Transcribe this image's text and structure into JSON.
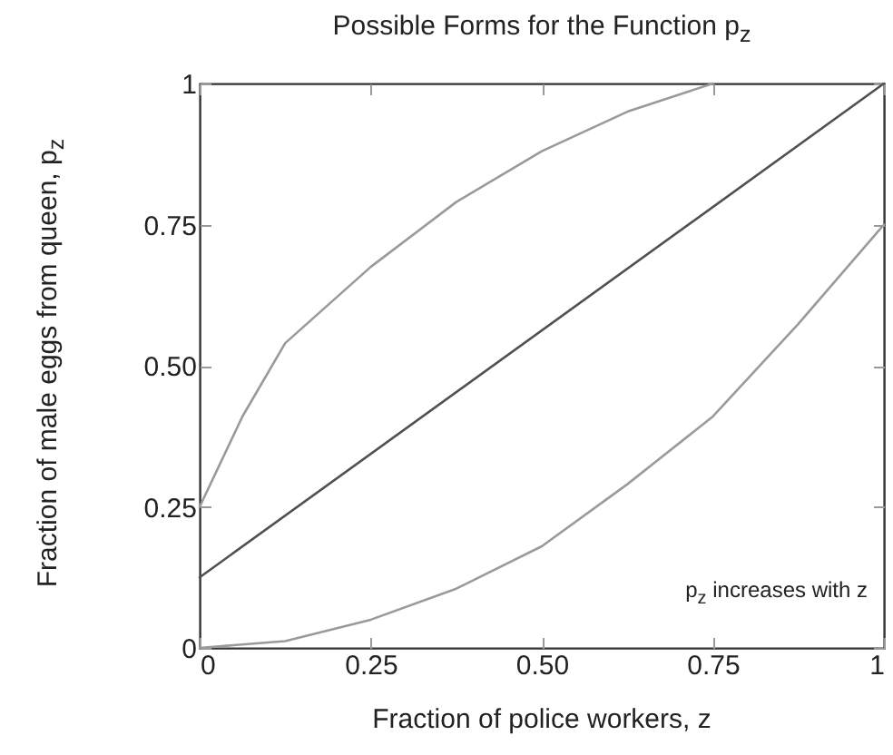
{
  "chart_data": {
    "type": "line",
    "title": "Possible Forms for the Function p$_{z}$",
    "xlabel": "Fraction of police workers, z",
    "ylabel": "Fraction of male eggs from queen, p$_{z}$",
    "xlim": [
      0,
      1
    ],
    "ylim": [
      0,
      1
    ],
    "xticks": [
      0,
      0.25,
      {
        "value": 0.5,
        "label": "0.50"
      },
      0.75,
      1
    ],
    "yticks": [
      0,
      0.25,
      {
        "value": 0.5,
        "label": "0.50"
      },
      0.75,
      1
    ],
    "series": [
      {
        "color": "#9a9a9a",
        "x": [
          0,
          0.0625,
          0.125,
          0.25,
          0.375,
          0.5,
          0.625,
          0.75
        ],
        "values": [
          0.25,
          0.41,
          0.54,
          0.675,
          0.79,
          0.88,
          0.95,
          1
        ]
      },
      {
        "color": "#505050",
        "x": [
          0,
          1
        ],
        "values": [
          0.125,
          1
        ]
      },
      {
        "color": "#9a9a9a",
        "x": [
          0,
          0.125,
          0.25,
          0.375,
          0.5,
          0.625,
          0.75,
          0.875,
          1
        ],
        "values": [
          0,
          0.012,
          0.05,
          0.105,
          0.18,
          0.29,
          0.41,
          0.574,
          0.75
        ]
      }
    ],
    "annotations": [
      "p$_{z}$ increases with z"
    ]
  }
}
